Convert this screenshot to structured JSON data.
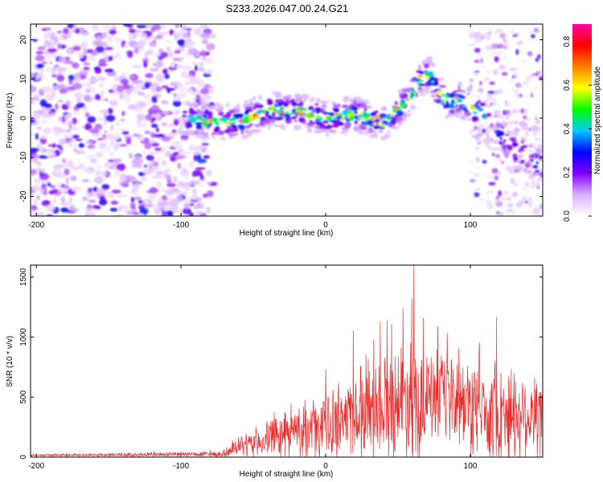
{
  "title": "S233.2026.047.00.24.G21",
  "chart_data": [
    {
      "type": "heatmap",
      "name": "spectrogram",
      "title": "S233.2026.047.00.24.G21",
      "xlabel": "Height of straight line (km)",
      "ylabel": "Frequency (Hz)",
      "xlim": [
        -204,
        150
      ],
      "ylim": [
        -25,
        24
      ],
      "xticks": [
        -200,
        -100,
        0,
        100
      ],
      "xtick_labels": [
        "-200",
        "-100",
        "0",
        "100"
      ],
      "yticks": [
        -20,
        -10,
        0,
        10,
        20
      ],
      "ytick_labels": [
        "-20",
        "-10",
        "0",
        "10",
        "20"
      ],
      "colorbar": {
        "label": "Normalized spectral amplitude",
        "range": [
          0,
          0.88
        ],
        "ticks": [
          0.0,
          0.2,
          0.4,
          0.6,
          0.8
        ],
        "tick_labels": [
          "0.0",
          "0.2",
          "0.4",
          "0.6",
          "0.8"
        ],
        "colors": [
          "#ffffff",
          "#d9b3ff",
          "#8000ff",
          "#0000ff",
          "#00c8ff",
          "#00ff00",
          "#ffff00",
          "#ff8000",
          "#ff0000",
          "#ff00a0"
        ]
      },
      "noise_region_x": [
        -204,
        -78
      ],
      "ridge": {
        "x": [
          -98,
          -80,
          -60,
          -40,
          -20,
          0,
          20,
          40,
          58,
          65,
          72,
          78,
          86,
          92,
          100,
          115,
          130,
          150
        ],
        "y": [
          0,
          -1,
          -1,
          2,
          2,
          0,
          1,
          -1,
          5,
          10,
          11,
          6,
          4,
          5,
          3,
          -2,
          -8,
          -12
        ]
      }
    },
    {
      "type": "line",
      "name": "snr",
      "xlabel": "Height of straight line (km)",
      "ylabel": "SNR (10 * v/v)",
      "xlim": [
        -204,
        150
      ],
      "ylim": [
        0,
        1600
      ],
      "xticks": [
        -200,
        -100,
        0,
        100
      ],
      "xtick_labels": [
        "-200",
        "-100",
        "0",
        "100"
      ],
      "yticks": [
        0,
        500,
        1000,
        1500
      ],
      "ytick_labels": [
        "0",
        "500",
        "1000",
        "1500"
      ],
      "color": "#ee2b2b",
      "envelope": {
        "x": [
          -204,
          -70,
          -60,
          -40,
          -20,
          0,
          20,
          30,
          50,
          60,
          70,
          80,
          100,
          120,
          150
        ],
        "mean": [
          15,
          25,
          80,
          150,
          220,
          260,
          380,
          420,
          460,
          520,
          450,
          480,
          420,
          380,
          350
        ],
        "amplitude": [
          10,
          30,
          90,
          180,
          250,
          320,
          450,
          480,
          550,
          700,
          500,
          400,
          500,
          500,
          450
        ]
      },
      "peak": {
        "x": 61,
        "y": 1600
      }
    }
  ]
}
